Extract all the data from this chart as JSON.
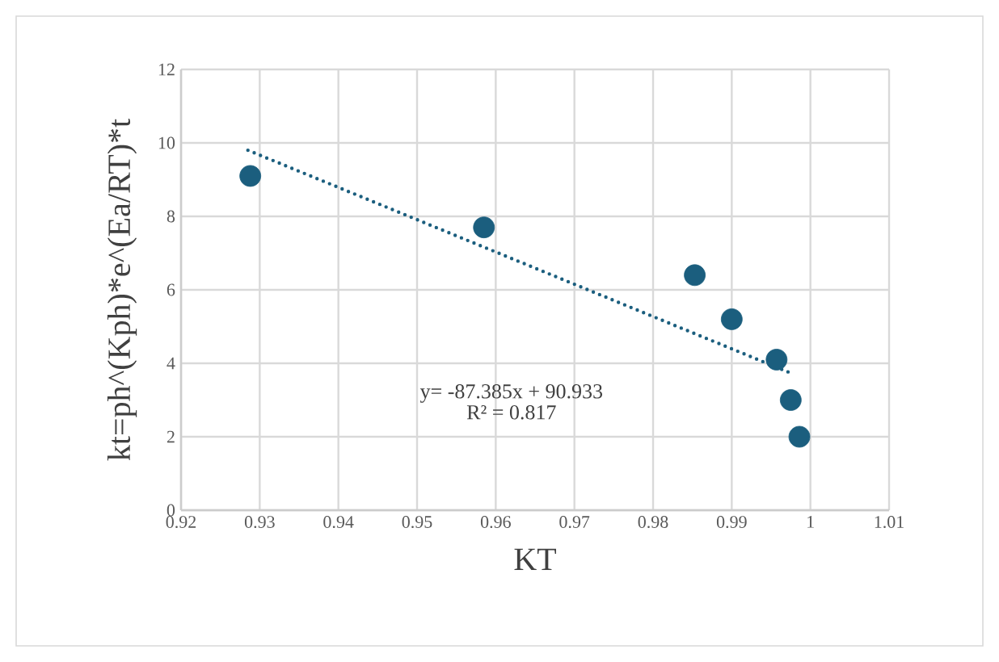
{
  "chart_data": {
    "type": "scatter",
    "xlabel": "KT",
    "ylabel": "kt=ph^(Kph)*e^(Ea/RT)*t",
    "xlim": [
      0.92,
      1.01
    ],
    "xticks": [
      0.92,
      0.93,
      0.94,
      0.95,
      0.96,
      0.97,
      0.98,
      0.99,
      {
        "value": 1,
        "label": "1"
      },
      1.01
    ],
    "ylim": [
      0,
      12
    ],
    "yticks": [
      0,
      2,
      4,
      6,
      8,
      10,
      12
    ],
    "grid": true,
    "series": [
      {
        "marker": "circle",
        "color": "#1b5e7e",
        "x": [
          0.9288,
          0.9585,
          0.9853,
          0.99,
          0.9957,
          0.9975,
          0.9986
        ],
        "values": [
          9.1,
          7.7,
          6.4,
          5.2,
          4.1,
          3.0,
          2.0
        ]
      },
      {
        "type": "line",
        "line_style": "dotted",
        "marker": "none",
        "color": "#1b5e7e",
        "x": [
          0.9285,
          0.9979
        ],
        "values": [
          9.8,
          3.7
        ]
      }
    ],
    "annotations": [
      "y= -87.385x + 90.933",
      "R² = 0.817"
    ]
  }
}
